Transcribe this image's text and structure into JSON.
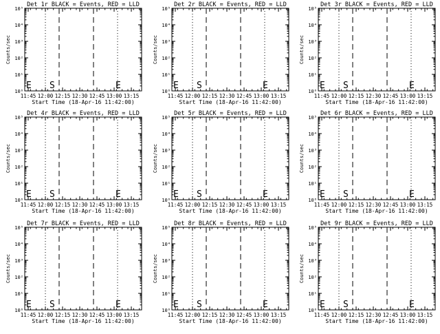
{
  "x_axis": {
    "title": "Start Time (18-Apr-16 11:42:00)",
    "ticks": [
      "11:45",
      "12:00",
      "12:15",
      "12:30",
      "12:45",
      "13:00",
      "13:15"
    ],
    "tick_minutes": [
      3,
      18,
      33,
      48,
      63,
      78,
      93
    ],
    "range_minutes": [
      0,
      102
    ]
  },
  "y_axis": {
    "title": "Counts/sec",
    "ticks": [
      "10⁰",
      "10¹",
      "10²",
      "10³",
      "10⁴",
      "10⁵"
    ],
    "log": true
  },
  "markers": {
    "dotted_minutes": [
      18,
      81
    ],
    "dashed_minutes": [
      30,
      60
    ],
    "start_label": "S",
    "end_label": "E"
  },
  "panels": [
    {
      "title": "Det 1r  BLACK = Events, RED = LLD",
      "s_minute": 30,
      "e_minute": 81
    },
    {
      "title": "Det 2r  BLACK = Events, RED = LLD",
      "s_minute": 30,
      "e_minute": 81
    },
    {
      "title": "Det 3r  BLACK = Events, RED = LLD",
      "s_minute": 30,
      "e_minute": 81
    },
    {
      "title": "Det 4r  BLACK = Events, RED = LLD",
      "s_minute": 30,
      "e_minute": 81
    },
    {
      "title": "Det 5r  BLACK = Events, RED = LLD",
      "s_minute": 30,
      "e_minute": 81
    },
    {
      "title": "Det 6r  BLACK = Events, RED = LLD",
      "s_minute": 30,
      "e_minute": 81
    },
    {
      "title": "Det 7r  BLACK = Events, RED = LLD",
      "s_minute": 30,
      "e_minute": 81
    },
    {
      "title": "Det 8r  BLACK = Events, RED = LLD",
      "s_minute": 30,
      "e_minute": 81
    },
    {
      "title": "Det 9r  BLACK = Events, RED = LLD",
      "s_minute": 30,
      "e_minute": 81
    }
  ],
  "chart_data": {
    "type": "line",
    "series": [],
    "xlabel": "Start Time (18-Apr-16 11:42:00)",
    "ylabel": "Counts/sec",
    "yscale": "log",
    "grid": false,
    "note_series": [
      "BLACK = Events",
      "RED = LLD"
    ]
  }
}
